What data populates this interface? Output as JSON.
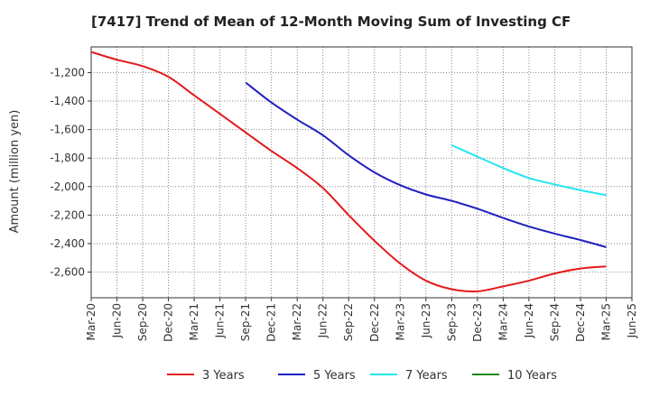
{
  "chart_data": {
    "type": "line",
    "title": "[7417]  Trend of Mean of 12-Month Moving Sum of Investing CF",
    "xlabel": "",
    "ylabel": "Amount (million yen)",
    "ylim": [
      -2780,
      -1020
    ],
    "y_ticks": [
      -1200,
      -1400,
      -1600,
      -1800,
      -2000,
      -2200,
      -2400,
      -2600
    ],
    "y_tick_labels": [
      "-1,200",
      "-1,400",
      "-1,600",
      "-1,800",
      "-2,000",
      "-2,200",
      "-2,400",
      "-2,600"
    ],
    "x_tick_labels": [
      "Mar-20",
      "Jun-20",
      "Sep-20",
      "Dec-20",
      "Mar-21",
      "Jun-21",
      "Sep-21",
      "Dec-21",
      "Mar-22",
      "Jun-22",
      "Sep-22",
      "Dec-22",
      "Mar-23",
      "Jun-23",
      "Sep-23",
      "Dec-23",
      "Mar-24",
      "Jun-24",
      "Sep-24",
      "Dec-24",
      "Mar-25",
      "Jun-25"
    ],
    "grid": true,
    "legend_position": "bottom",
    "series": [
      {
        "name": "3 Years",
        "color": "#e31a1c",
        "values": [
          -1055,
          -1110,
          -1155,
          -1230,
          -1360,
          -1490,
          -1620,
          -1750,
          -1870,
          -2010,
          -2200,
          -2380,
          -2540,
          -2660,
          -2720,
          -2735,
          -2700,
          -2660,
          -2610,
          -2575,
          -2560
        ]
      },
      {
        "name": "5 Years",
        "color": "#1f1fbf",
        "values": [
          null,
          null,
          null,
          null,
          null,
          null,
          -1270,
          -1410,
          -1530,
          -1640,
          -1780,
          -1900,
          -1990,
          -2055,
          -2100,
          -2155,
          -2220,
          -2280,
          -2330,
          -2375,
          -2425
        ]
      },
      {
        "name": "7 Years",
        "color": "#22e6f0",
        "values": [
          null,
          null,
          null,
          null,
          null,
          null,
          null,
          null,
          null,
          null,
          null,
          null,
          null,
          null,
          -1710,
          -1790,
          -1870,
          -1940,
          -1985,
          -2025,
          -2060
        ]
      },
      {
        "name": "10 Years",
        "color": "#1a8a1a",
        "values": [
          null,
          null,
          null,
          null,
          null,
          null,
          null,
          null,
          null,
          null,
          null,
          null,
          null,
          null,
          null,
          null,
          null,
          null,
          null,
          null,
          null
        ]
      }
    ]
  }
}
